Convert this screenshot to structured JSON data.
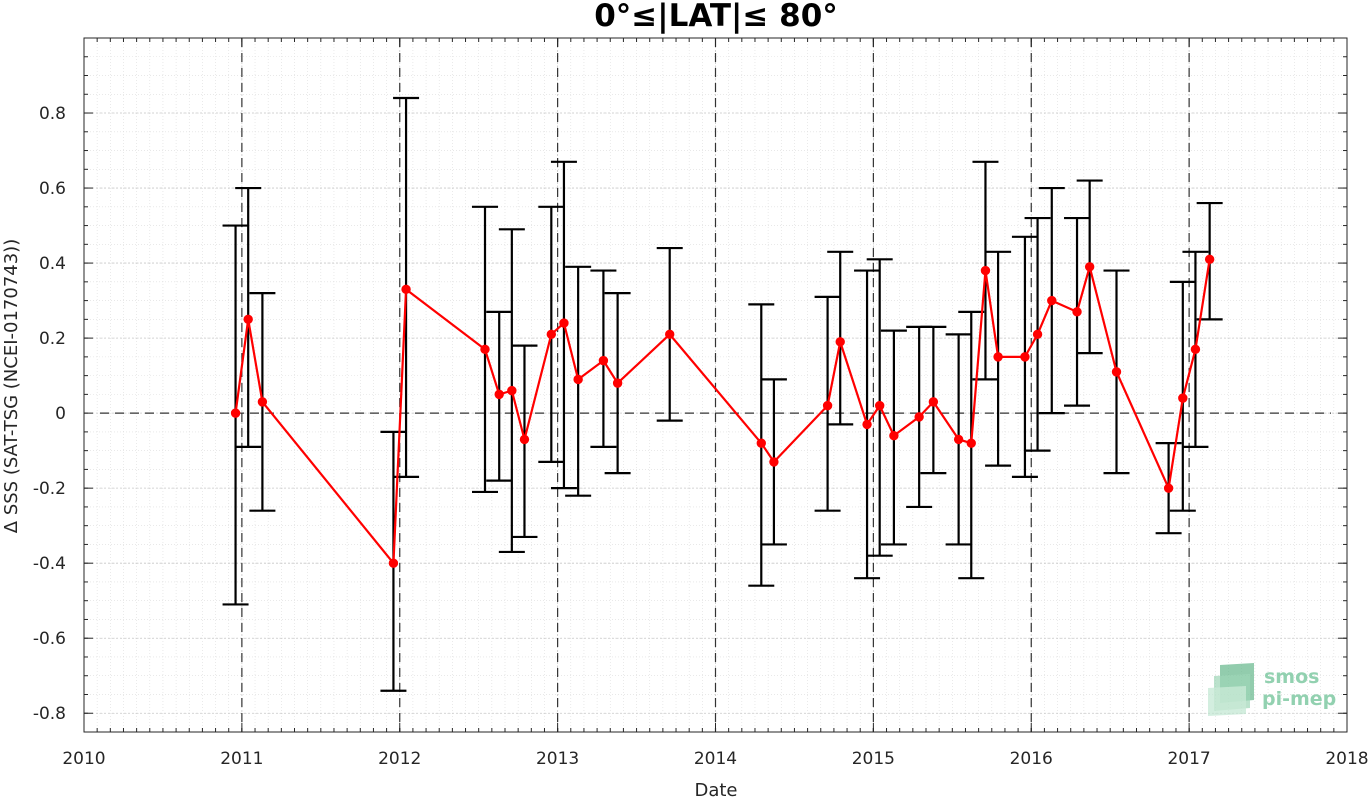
{
  "chart_data": {
    "type": "line",
    "title": "0°≤|LAT|≤ 80°",
    "xlabel": "Date",
    "ylabel": "Δ SSS (SAT-TSG (NCEI-0170743))",
    "xlim": [
      2010,
      2018
    ],
    "ylim": [
      -0.85,
      1.0
    ],
    "x_ticks": [
      "2010",
      "2011",
      "2012",
      "2013",
      "2014",
      "2015",
      "2016",
      "2017",
      "2018"
    ],
    "y_ticks": [
      "-0.8",
      "-0.6",
      "-0.4",
      "-0.2",
      "0",
      "0.2",
      "0.4",
      "0.6",
      "0.8"
    ],
    "grid": true,
    "minor_grid": true,
    "year_dashed_lines": [
      2011,
      2012,
      2013,
      2014,
      2015,
      2016,
      2017
    ],
    "zero_line": true,
    "series": [
      {
        "color": "#ff0000",
        "errorbar_color": "#000000",
        "x": [
          2010.96,
          2011.04,
          2011.13,
          2011.96,
          2012.04,
          2012.54,
          2012.63,
          2012.71,
          2012.79,
          2012.96,
          2013.04,
          2013.13,
          2013.29,
          2013.38,
          2013.71,
          2014.29,
          2014.37,
          2014.71,
          2014.79,
          2014.96,
          2015.04,
          2015.13,
          2015.29,
          2015.38,
          2015.54,
          2015.62,
          2015.71,
          2015.79,
          2015.96,
          2016.04,
          2016.13,
          2016.29,
          2016.37,
          2016.54,
          2016.87,
          2016.96,
          2017.04,
          2017.13
        ],
        "y": [
          0.0,
          0.25,
          0.03,
          -0.4,
          0.33,
          0.17,
          0.05,
          0.06,
          -0.07,
          0.21,
          0.24,
          0.09,
          0.14,
          0.08,
          0.21,
          -0.08,
          -0.13,
          0.02,
          0.19,
          -0.03,
          0.02,
          -0.06,
          -0.01,
          0.03,
          -0.07,
          -0.08,
          0.38,
          0.15,
          0.15,
          0.21,
          0.3,
          0.27,
          0.39,
          0.11,
          -0.2,
          0.04,
          0.17,
          0.41
        ],
        "err_low": [
          -0.51,
          -0.09,
          -0.26,
          -0.74,
          -0.17,
          -0.21,
          -0.18,
          -0.37,
          -0.33,
          -0.13,
          -0.2,
          -0.22,
          -0.09,
          -0.16,
          -0.02,
          -0.46,
          -0.35,
          -0.26,
          -0.03,
          -0.44,
          -0.38,
          -0.35,
          -0.25,
          -0.16,
          -0.35,
          -0.44,
          0.09,
          -0.14,
          -0.17,
          -0.1,
          0.0,
          0.02,
          0.16,
          -0.16,
          -0.32,
          -0.26,
          -0.09,
          0.25
        ],
        "err_high": [
          0.5,
          0.6,
          0.32,
          -0.05,
          0.84,
          0.55,
          0.27,
          0.49,
          0.18,
          0.55,
          0.67,
          0.39,
          0.38,
          0.32,
          0.44,
          0.29,
          0.09,
          0.31,
          0.43,
          0.38,
          0.41,
          0.22,
          0.23,
          0.23,
          0.21,
          0.27,
          0.67,
          0.43,
          0.47,
          0.52,
          0.6,
          0.52,
          0.62,
          0.38,
          -0.08,
          0.35,
          0.43,
          0.56
        ]
      }
    ]
  },
  "logo": {
    "line1": "smos",
    "line2": "pi-mep"
  }
}
